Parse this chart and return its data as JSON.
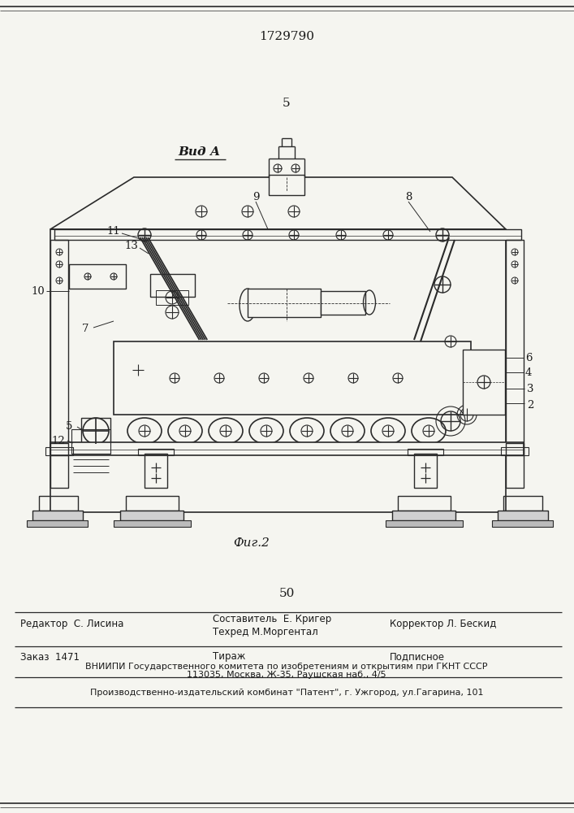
{
  "page_number_top": "1729790",
  "page_number_mid": "5",
  "page_number_bot": "50",
  "view_label": "Вид А",
  "fig_label": "Фиг.2",
  "bg_color": "#f5f5f0",
  "line_color": "#2a2a2a",
  "text_color": "#1a1a1a",
  "editor_line": "Редактор  С. Лисина",
  "composer_line1": "Составитель  Е. Кригер",
  "composer_line2": "Техред М.Моргентал",
  "corrector_line": "Корректор Л. Бескид",
  "order_line": "Заказ  1471",
  "tirazh_line": "Тираж",
  "podpisnoe_line": "Подписное",
  "vniiipi_line": "ВНИИПИ Государственного комитета по изобретениям и открытиям при ГКНТ СССР",
  "address_line": "113035, Москва, Ж-35, Раушская наб., 4/5",
  "publisher_line": "Производственно-издательский комбинат \"Патент\", г. Ужгород, ул.Гагарина, 101"
}
